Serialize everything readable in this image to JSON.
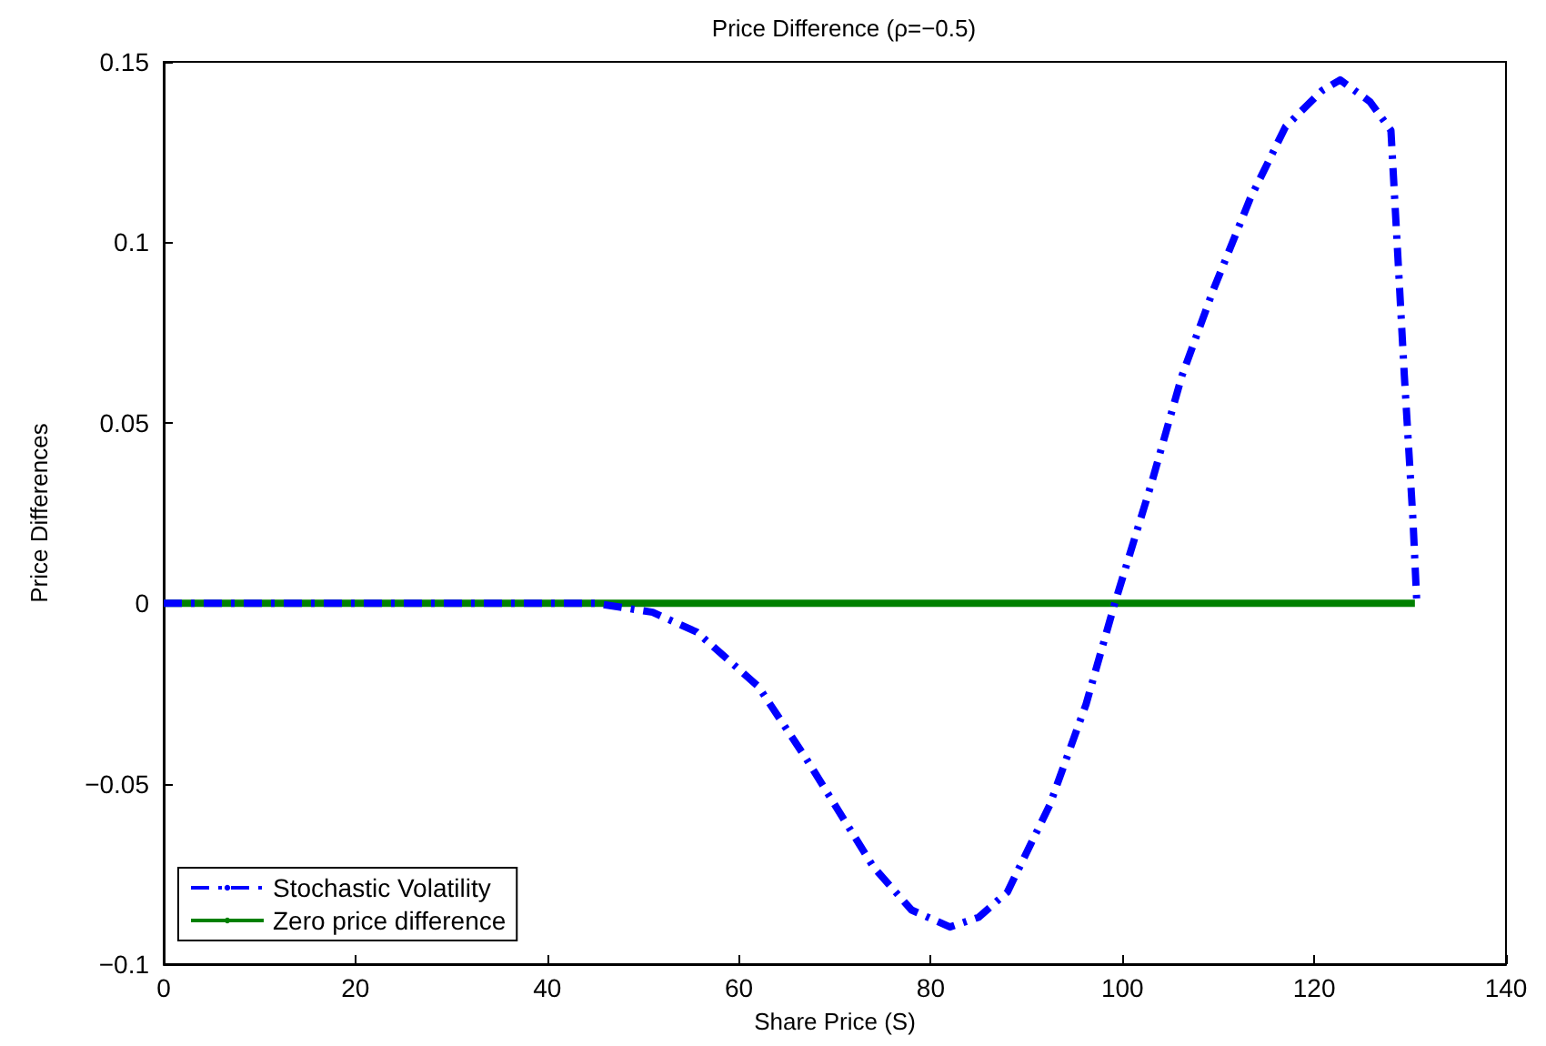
{
  "chart_data": {
    "type": "line",
    "title": "Price Difference (ρ=−0.5)",
    "xlabel": "Share Price (S)",
    "ylabel": "Price Differences",
    "xlim": [
      0,
      140
    ],
    "xticks": [
      0,
      20,
      40,
      60,
      80,
      100,
      120,
      140
    ],
    "ylim": [
      -0.1,
      0.15
    ],
    "yticks": [
      {
        "value": -0.1,
        "label": "−0.1"
      },
      {
        "value": -0.05,
        "label": "−0.05"
      },
      0,
      0.05,
      0.1,
      0.15
    ],
    "grid": false,
    "legend": "bottom left",
    "marker": "none",
    "series": [
      {
        "name": "Stochastic Volatility",
        "color": "#0000ff",
        "line_style": "dashed",
        "x": [
          0,
          10,
          20,
          30,
          40,
          45,
          51,
          55.6,
          62,
          67,
          74,
          78,
          82,
          85,
          88,
          92.4,
          96.2,
          99.2,
          103,
          106.2,
          109.5,
          113.3,
          117,
          120.8,
          122.7,
          125.8,
          128,
          128.6,
          129.4,
          130.3,
          130.7
        ],
        "values": [
          0,
          0,
          0,
          0,
          0,
          0,
          -0.0025,
          -0.008,
          -0.023,
          -0.043,
          -0.073,
          -0.085,
          -0.0897,
          -0.087,
          -0.08,
          -0.056,
          -0.028,
          0,
          0.033,
          0.063,
          0.087,
          0.112,
          0.132,
          0.142,
          0.145,
          0.139,
          0.131,
          0.102,
          0.063,
          0.023,
          0
        ]
      },
      {
        "name": "Zero price difference",
        "color": "#008000",
        "line_style": "solid",
        "x": [
          0,
          130.5
        ],
        "values": [
          0,
          0
        ]
      }
    ]
  }
}
